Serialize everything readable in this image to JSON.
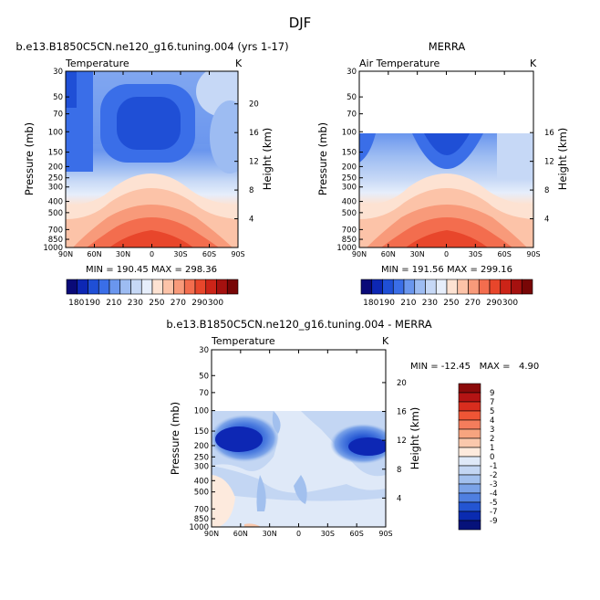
{
  "page_title": "DJF",
  "chart_data": [
    {
      "type": "heatmap",
      "title": "b.e13.B1850C5CN.ne120_g16.tuning.004 (yrs 1-17)",
      "left_label": "Temperature",
      "right_label": "K",
      "ylabel": "Pressure (mb)",
      "ylabel_right": "Height (km)",
      "x_ticks": [
        "90N",
        "60N",
        "30N",
        "0",
        "30S",
        "60S",
        "90S"
      ],
      "y_ticks": [
        "30",
        "50",
        "70",
        "100",
        "150",
        "200",
        "250",
        "300",
        "400",
        "500",
        "700",
        "850",
        "1000"
      ],
      "height_ticks": [
        "20",
        "16",
        "12",
        "8",
        "4"
      ],
      "stats": "MIN = 190.45   MAX = 298.36",
      "min": 190.45,
      "max": 298.36,
      "colorbar_labels": [
        "180",
        "190",
        "210",
        "230",
        "250",
        "270",
        "290",
        "300"
      ],
      "colorbar_colors": [
        "#0a0a78",
        "#0d27b4",
        "#1f4fd6",
        "#3a6ee8",
        "#6a96ee",
        "#9dbcf2",
        "#c6d8f6",
        "#e6eefb",
        "#fde2d2",
        "#fcc3a8",
        "#f89a7a",
        "#f36d4e",
        "#e8462b",
        "#cc2418",
        "#a5110f",
        "#780606"
      ]
    },
    {
      "type": "heatmap",
      "title": "MERRA",
      "left_label": "Air Temperature",
      "right_label": "K",
      "ylabel": "Pressure (mb)",
      "ylabel_right": "Height (km)",
      "x_ticks": [
        "90N",
        "60N",
        "30N",
        "0",
        "30S",
        "60S",
        "90S"
      ],
      "y_ticks": [
        "30",
        "50",
        "70",
        "100",
        "150",
        "200",
        "250",
        "300",
        "400",
        "500",
        "700",
        "850",
        "1000"
      ],
      "height_ticks": [
        "16",
        "12",
        "8",
        "4"
      ],
      "stats": "MIN = 191.56   MAX = 299.16",
      "min": 191.56,
      "max": 299.16,
      "colorbar_labels": [
        "180",
        "190",
        "210",
        "230",
        "250",
        "270",
        "290",
        "300"
      ]
    },
    {
      "type": "heatmap",
      "title": "b.e13.B1850C5CN.ne120_g16.tuning.004 - MERRA",
      "left_label": "Temperature",
      "right_label": "K",
      "ylabel": "Pressure (mb)",
      "ylabel_right": "Height (km)",
      "x_ticks": [
        "90N",
        "60N",
        "30N",
        "0",
        "30S",
        "60S",
        "90S"
      ],
      "y_ticks": [
        "30",
        "50",
        "70",
        "100",
        "150",
        "200",
        "250",
        "300",
        "400",
        "500",
        "700",
        "850",
        "1000"
      ],
      "height_ticks": [
        "20",
        "16",
        "12",
        "8",
        "4"
      ],
      "stats": "MIN = -12.45   MAX =   4.90",
      "min": -12.45,
      "max": 4.9,
      "colorbar_labels": [
        "9",
        "7",
        "5",
        "4",
        "3",
        "2",
        "1",
        "0",
        "-1",
        "-2",
        "-3",
        "-4",
        "-5",
        "-7",
        "-9"
      ],
      "colorbar_colors": [
        "#8b0a0a",
        "#b41414",
        "#d82d1e",
        "#ef5535",
        "#f47d5c",
        "#f7a47f",
        "#fac8ac",
        "#fdeadd",
        "#dfe9f8",
        "#c3d6f3",
        "#a2c0ee",
        "#7ba3e8",
        "#4f7fe0",
        "#2455d2",
        "#0a2bb0",
        "#06127a"
      ]
    }
  ]
}
